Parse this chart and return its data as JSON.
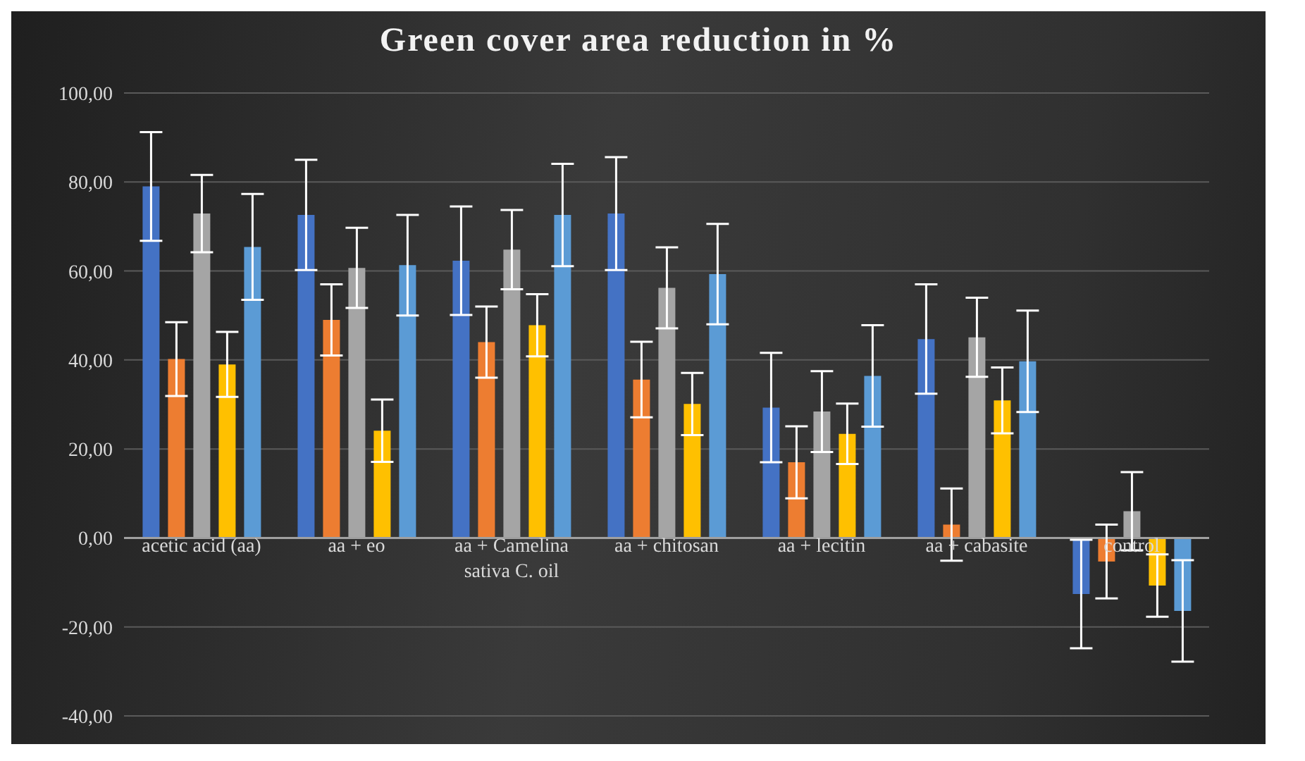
{
  "chart_data": {
    "type": "bar",
    "title": "Green cover area reduction in %",
    "categories": [
      "acetic acid (aa)",
      "aa + eo",
      "aa + Camelina sativa C. oil",
      "aa + chitosan",
      "aa + lecitin",
      "aa + cabasite",
      "control"
    ],
    "series": [
      {
        "color": "#4472c4",
        "values": [
          79.0,
          72.6,
          62.3,
          72.9,
          29.3,
          44.7,
          -12.6
        ],
        "errors": [
          12.2,
          12.4,
          12.2,
          12.7,
          12.3,
          12.3,
          12.2
        ]
      },
      {
        "color": "#ed7d31",
        "values": [
          40.2,
          49.0,
          44.0,
          35.6,
          17.0,
          3.0,
          -5.3
        ],
        "errors": [
          8.3,
          8.0,
          8.0,
          8.5,
          8.1,
          8.1,
          8.3
        ]
      },
      {
        "color": "#a5a5a5",
        "values": [
          72.9,
          60.7,
          64.8,
          56.2,
          28.4,
          45.1,
          6.0
        ],
        "errors": [
          8.7,
          9.0,
          8.9,
          9.1,
          9.1,
          8.9,
          8.8
        ]
      },
      {
        "color": "#ffc000",
        "values": [
          39.0,
          24.1,
          47.8,
          30.1,
          23.4,
          30.9,
          -10.7
        ],
        "errors": [
          7.3,
          7.0,
          7.0,
          7.0,
          6.8,
          7.4,
          7.0
        ]
      },
      {
        "color": "#5b9bd5",
        "values": [
          65.4,
          61.3,
          72.6,
          59.3,
          36.4,
          39.7,
          -16.4
        ],
        "errors": [
          11.9,
          11.3,
          11.5,
          11.3,
          11.4,
          11.4,
          11.4
        ]
      }
    ],
    "ylim": [
      -40,
      100
    ],
    "yticks": [
      {
        "value": -40,
        "label": "-40,00"
      },
      {
        "value": -20,
        "label": "-20,00"
      },
      {
        "value": 0,
        "label": "0,00"
      },
      {
        "value": 20,
        "label": "20,00"
      },
      {
        "value": 40,
        "label": "40,00"
      },
      {
        "value": 60,
        "label": "60,00"
      },
      {
        "value": 80,
        "label": "80,00"
      },
      {
        "value": 100,
        "label": "100,00"
      }
    ],
    "grid": "y",
    "legend": false
  }
}
